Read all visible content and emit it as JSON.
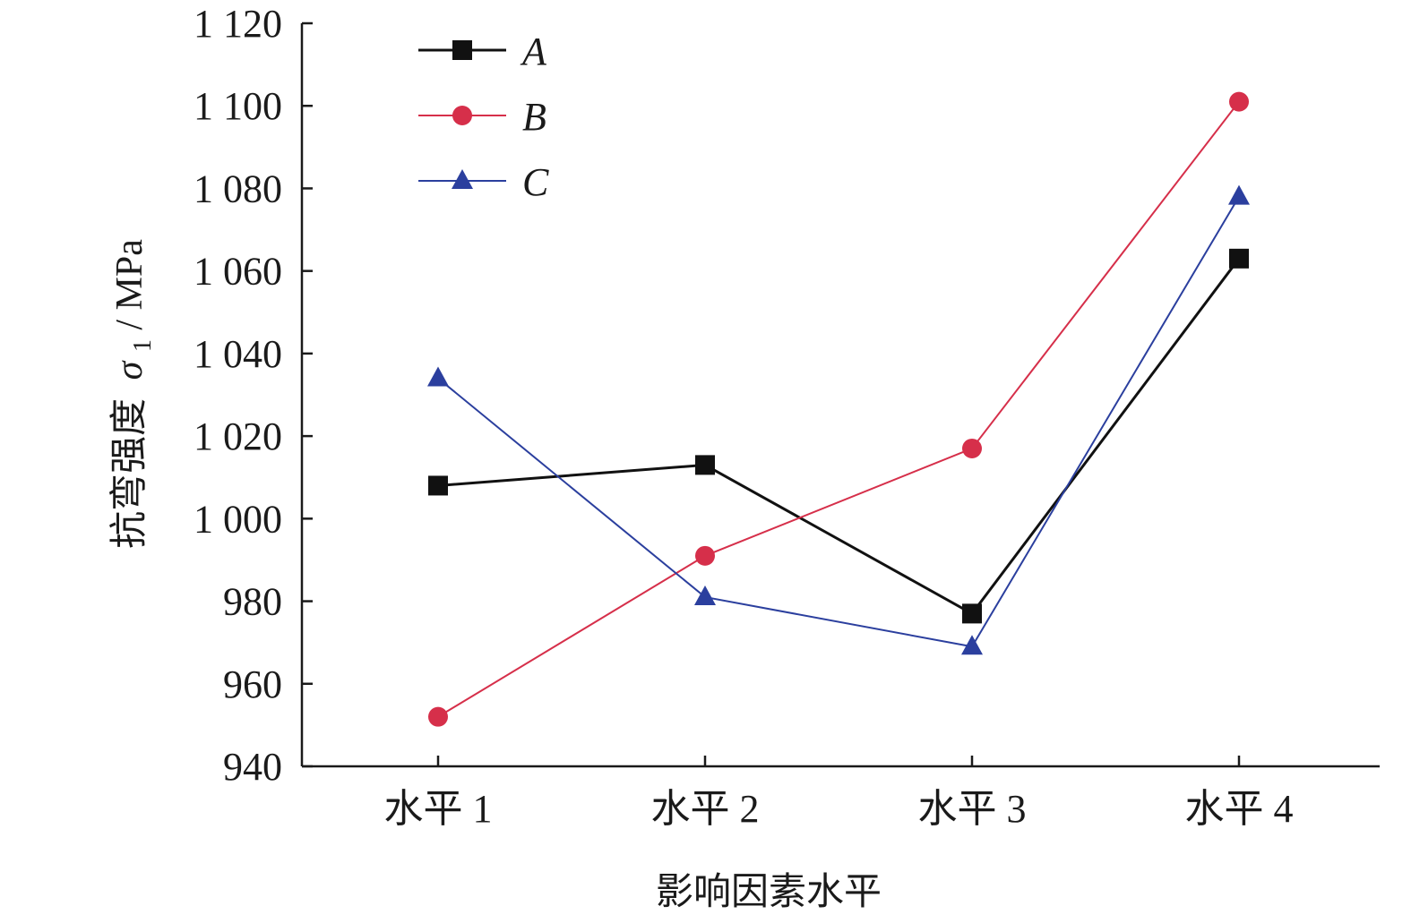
{
  "chart_data": {
    "type": "line",
    "xlabel": "影响因素水平",
    "ylabel_main": "抗弯强度",
    "ylabel_symbol": "σ",
    "ylabel_subscript": "1",
    "ylabel_unit": " / MPa",
    "categories": [
      "水平 1",
      "水平 2",
      "水平 3",
      "水平 4"
    ],
    "ylim": [
      940,
      1120
    ],
    "yticks": [
      940,
      960,
      980,
      1000,
      1020,
      1040,
      1060,
      1080,
      1100,
      1120
    ],
    "ytick_labels": [
      "940",
      "960",
      "980",
      "1 000",
      "1 020",
      "1 040",
      "1 060",
      "1 080",
      "1 100",
      "1 120"
    ],
    "legend_position": "top-left",
    "grid": false,
    "series": [
      {
        "name": "A",
        "marker": "square",
        "color": "#111111",
        "values": [
          1008,
          1013,
          977,
          1063
        ]
      },
      {
        "name": "B",
        "marker": "circle",
        "color": "#d62f4a",
        "values": [
          952,
          991,
          1017,
          1101
        ]
      },
      {
        "name": "C",
        "marker": "triangle",
        "color": "#2b3f9e",
        "values": [
          1034,
          981,
          969,
          1078
        ]
      }
    ]
  }
}
